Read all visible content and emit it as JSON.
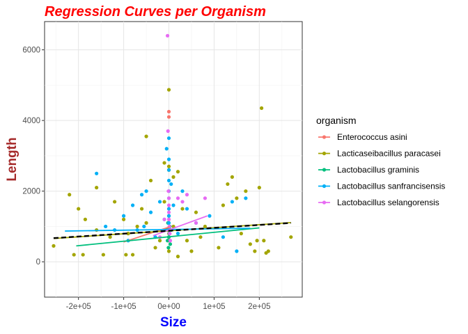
{
  "chart_data": {
    "type": "scatter",
    "title": "Regression Curves per Organism",
    "xlabel": "Size",
    "ylabel": "Length",
    "xlim": [
      -275000,
      295000
    ],
    "ylim": [
      -1000,
      6800
    ],
    "x_ticks": [
      -200000,
      -100000,
      0,
      100000,
      200000
    ],
    "x_tick_labels": [
      "-2e+05",
      "-1e+05",
      "0e+00",
      "1e+05",
      "2e+05"
    ],
    "y_ticks": [
      0,
      2000,
      4000,
      6000
    ],
    "y_tick_labels": [
      "0",
      "2000",
      "4000",
      "6000"
    ],
    "grid": true,
    "legend_title": "organism",
    "legend_position": "right",
    "colors": {
      "title": "#ff0000",
      "xlabel": "#0000ff",
      "ylabel": "#a52a2a",
      "overall_fit": "#000000"
    },
    "series": [
      {
        "name": "Enterococcus asini",
        "color": "#f8766d",
        "x": [
          0,
          0,
          0,
          0,
          0,
          0,
          0
        ],
        "y": [
          4250,
          4100,
          1500,
          1200,
          950,
          800,
          600
        ],
        "fit": {
          "x": [
            -100000,
            2000
          ],
          "y": [
            560,
            990
          ]
        }
      },
      {
        "name": "Lacticaseibacillus paracasei",
        "color": "#a3a500",
        "x": [
          -255000,
          -220000,
          -210000,
          -200000,
          -190000,
          -185000,
          -160000,
          -160000,
          -145000,
          -130000,
          -120000,
          -100000,
          -95000,
          -90000,
          -80000,
          -70000,
          -60000,
          -50000,
          -50000,
          -40000,
          -30000,
          -20000,
          -10000,
          -10000,
          0,
          0,
          0,
          0,
          0,
          10000,
          10000,
          20000,
          20000,
          30000,
          40000,
          50000,
          60000,
          70000,
          80000,
          110000,
          120000,
          130000,
          140000,
          150000,
          160000,
          170000,
          180000,
          190000,
          195000,
          200000,
          205000,
          210000,
          215000,
          220000,
          270000
        ],
        "y": [
          450,
          1900,
          200,
          1500,
          200,
          1200,
          2100,
          900,
          200,
          700,
          1700,
          1200,
          200,
          800,
          200,
          1000,
          1500,
          3550,
          1100,
          2300,
          400,
          600,
          1700,
          2800,
          4870,
          2700,
          2600,
          700,
          300,
          2400,
          1000,
          2550,
          150,
          1500,
          600,
          300,
          1400,
          700,
          1000,
          400,
          1600,
          2200,
          2400,
          1800,
          800,
          2000,
          500,
          300,
          600,
          2100,
          4350,
          600,
          250,
          300,
          700
        ],
        "fit": {
          "x": [
            -255000,
            270000
          ],
          "y": [
            660,
            1110
          ]
        }
      },
      {
        "name": "Lactobacillus graminis",
        "color": "#00bf7d",
        "x": [
          -5000,
          -3000,
          -2000,
          -1000,
          0,
          0,
          1000,
          2000,
          3000,
          5000
        ],
        "y": [
          900,
          600,
          1100,
          400,
          1300,
          700,
          800,
          1000,
          500,
          900
        ],
        "fit": {
          "x": [
            -205000,
            200000
          ],
          "y": [
            450,
            960
          ]
        }
      },
      {
        "name": "Lactobacillus sanfrancisensis",
        "color": "#00b0f6",
        "x": [
          -160000,
          -140000,
          -120000,
          -100000,
          -90000,
          -80000,
          -70000,
          -60000,
          -55000,
          -50000,
          -40000,
          -30000,
          -20000,
          -10000,
          -5000,
          0,
          0,
          0,
          0,
          0,
          0,
          0,
          0,
          0,
          0,
          5000,
          10000,
          20000,
          30000,
          40000,
          60000,
          90000,
          120000,
          140000,
          150000,
          170000
        ],
        "y": [
          2500,
          1000,
          900,
          1300,
          600,
          1600,
          900,
          1900,
          1000,
          2000,
          1400,
          700,
          1700,
          1200,
          3200,
          3500,
          2900,
          2600,
          2300,
          2000,
          1800,
          1500,
          1300,
          1100,
          900,
          2200,
          1600,
          800,
          2000,
          1500,
          1100,
          1300,
          700,
          1700,
          300,
          1800
        ],
        "fit": {
          "x": [
            -230000,
            180000
          ],
          "y": [
            870,
            950
          ]
        }
      },
      {
        "name": "Lactobacillus selangorensis",
        "color": "#e76bf3",
        "x": [
          -3000,
          -2000,
          -1000,
          0,
          0,
          0,
          0,
          1000,
          2000,
          3000,
          20000,
          30000,
          40000,
          60000,
          80000,
          -20000,
          -10000
        ],
        "y": [
          6400,
          3700,
          2000,
          1800,
          1600,
          1400,
          1200,
          1000,
          800,
          600,
          1800,
          1700,
          1900,
          1100,
          1800,
          700,
          1200
        ],
        "fit": {
          "x": [
            -35000,
            85000
          ],
          "y": [
            740,
            1300
          ]
        }
      }
    ],
    "overall_fit": {
      "x": [
        -255000,
        270000
      ],
      "y": [
        670,
        1100
      ],
      "style": "dashed"
    }
  }
}
